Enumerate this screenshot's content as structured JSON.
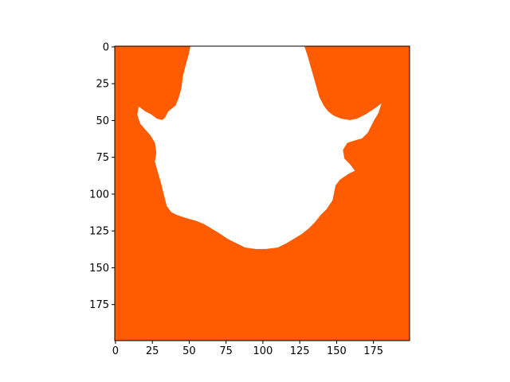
{
  "chart_data": {
    "type": "heatmap",
    "title": "",
    "xlabel": "",
    "ylabel": "",
    "grid": false,
    "legend": "none",
    "image_size": [
      200,
      200
    ],
    "xlim": [
      -0.5,
      199.5
    ],
    "ylim": [
      199.5,
      -0.5
    ],
    "y_axis_inverted": true,
    "x_ticks": [
      0,
      25,
      50,
      75,
      100,
      125,
      150,
      175
    ],
    "y_ticks": [
      0,
      25,
      50,
      75,
      100,
      125,
      150,
      175
    ],
    "x_tick_labels": [
      "0",
      "25",
      "50",
      "75",
      "100",
      "125",
      "150",
      "175"
    ],
    "y_tick_labels": [
      "0",
      "25",
      "50",
      "75",
      "100",
      "125",
      "150",
      "175"
    ],
    "colors": {
      "mask": "#ff5b00",
      "background_region": "#ffffff"
    },
    "white_region_boundary": [
      [
        51,
        0
      ],
      [
        50,
        5
      ],
      [
        48,
        12
      ],
      [
        46,
        20
      ],
      [
        45,
        28
      ],
      [
        43,
        35
      ],
      [
        41,
        40
      ],
      [
        36,
        44
      ],
      [
        34,
        48
      ],
      [
        32,
        50
      ],
      [
        28,
        49
      ],
      [
        24,
        46
      ],
      [
        20,
        44
      ],
      [
        16,
        41
      ],
      [
        15,
        46
      ],
      [
        17,
        52
      ],
      [
        24,
        60
      ],
      [
        27,
        65
      ],
      [
        28,
        72
      ],
      [
        27,
        78
      ],
      [
        29,
        85
      ],
      [
        31,
        92
      ],
      [
        33,
        100
      ],
      [
        35,
        108
      ],
      [
        38,
        112
      ],
      [
        42,
        114
      ],
      [
        48,
        116
      ],
      [
        55,
        118
      ],
      [
        60,
        120
      ],
      [
        65,
        123
      ],
      [
        70,
        126
      ],
      [
        76,
        130
      ],
      [
        82,
        133
      ],
      [
        88,
        136
      ],
      [
        95,
        137
      ],
      [
        102,
        137
      ],
      [
        110,
        136
      ],
      [
        116,
        133
      ],
      [
        121,
        130
      ],
      [
        126,
        127
      ],
      [
        131,
        123
      ],
      [
        135,
        119
      ],
      [
        139,
        114
      ],
      [
        143,
        110
      ],
      [
        147,
        104
      ],
      [
        148,
        99
      ],
      [
        149,
        94
      ],
      [
        152,
        90
      ],
      [
        158,
        86
      ],
      [
        162,
        84
      ],
      [
        159,
        80
      ],
      [
        155,
        76
      ],
      [
        154,
        70
      ],
      [
        157,
        65
      ],
      [
        163,
        63
      ],
      [
        167,
        62
      ],
      [
        171,
        58
      ],
      [
        173,
        54
      ],
      [
        175,
        50
      ],
      [
        178,
        45
      ],
      [
        180,
        39
      ],
      [
        176,
        42
      ],
      [
        170,
        46
      ],
      [
        164,
        49
      ],
      [
        159,
        50
      ],
      [
        153,
        49
      ],
      [
        148,
        47
      ],
      [
        144,
        44
      ],
      [
        141,
        40
      ],
      [
        138,
        34
      ],
      [
        136,
        27
      ],
      [
        134,
        20
      ],
      [
        132,
        13
      ],
      [
        130,
        6
      ],
      [
        128,
        0
      ]
    ]
  }
}
